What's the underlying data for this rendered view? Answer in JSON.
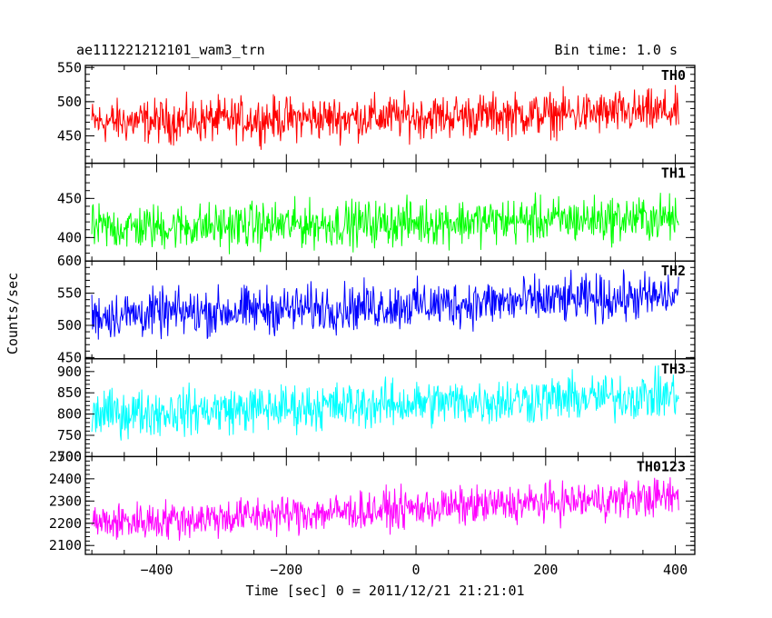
{
  "header": {
    "title": "ae111221212101_wam3_trn",
    "bin_time": "Bin time: 1.0 s"
  },
  "chart_data": {
    "type": "line",
    "title": "ae111221212101_wam3_trn",
    "xlabel": "Time [sec] 0 = 2011/12/21 21:21:01",
    "ylabel": "Counts/sec",
    "xlim": [
      -510,
      430
    ],
    "x_range": [
      -500,
      405
    ],
    "bin_seconds": 1.0,
    "xticks": [
      -400,
      -200,
      0,
      200,
      400
    ],
    "xtick_labels": [
      "−400",
      "−200",
      "0",
      "200",
      "400"
    ],
    "grid": false,
    "panels": [
      {
        "name": "TH0",
        "color": "#ff0000",
        "ylim": [
          410,
          553
        ],
        "yticks": [
          450,
          500,
          550
        ],
        "trend": [
          -500,
          470,
          405,
          485
        ],
        "noise_halfwidth": 35
      },
      {
        "name": "TH1",
        "color": "#00ff00",
        "ylim": [
          370,
          495
        ],
        "yticks": [
          400,
          450
        ],
        "trend": [
          -500,
          412,
          405,
          425
        ],
        "noise_halfwidth": 32
      },
      {
        "name": "TH2",
        "color": "#0000ff",
        "ylim": [
          448,
          600
        ],
        "yticks": [
          450,
          500,
          550,
          600
        ],
        "trend": [
          -500,
          515,
          405,
          545
        ],
        "noise_halfwidth": 40
      },
      {
        "name": "TH3",
        "color": "#00ffff",
        "ylim": [
          700,
          930
        ],
        "yticks": [
          700,
          750,
          800,
          850,
          900
        ],
        "trend": [
          -500,
          800,
          405,
          845
        ],
        "noise_halfwidth": 60
      },
      {
        "name": "TH0123",
        "color": "#ff00ff",
        "ylim": [
          2060,
          2500
        ],
        "yticks": [
          2100,
          2200,
          2300,
          2400,
          2500
        ],
        "trend": [
          -500,
          2200,
          405,
          2320
        ],
        "noise_halfwidth": 95
      }
    ]
  }
}
